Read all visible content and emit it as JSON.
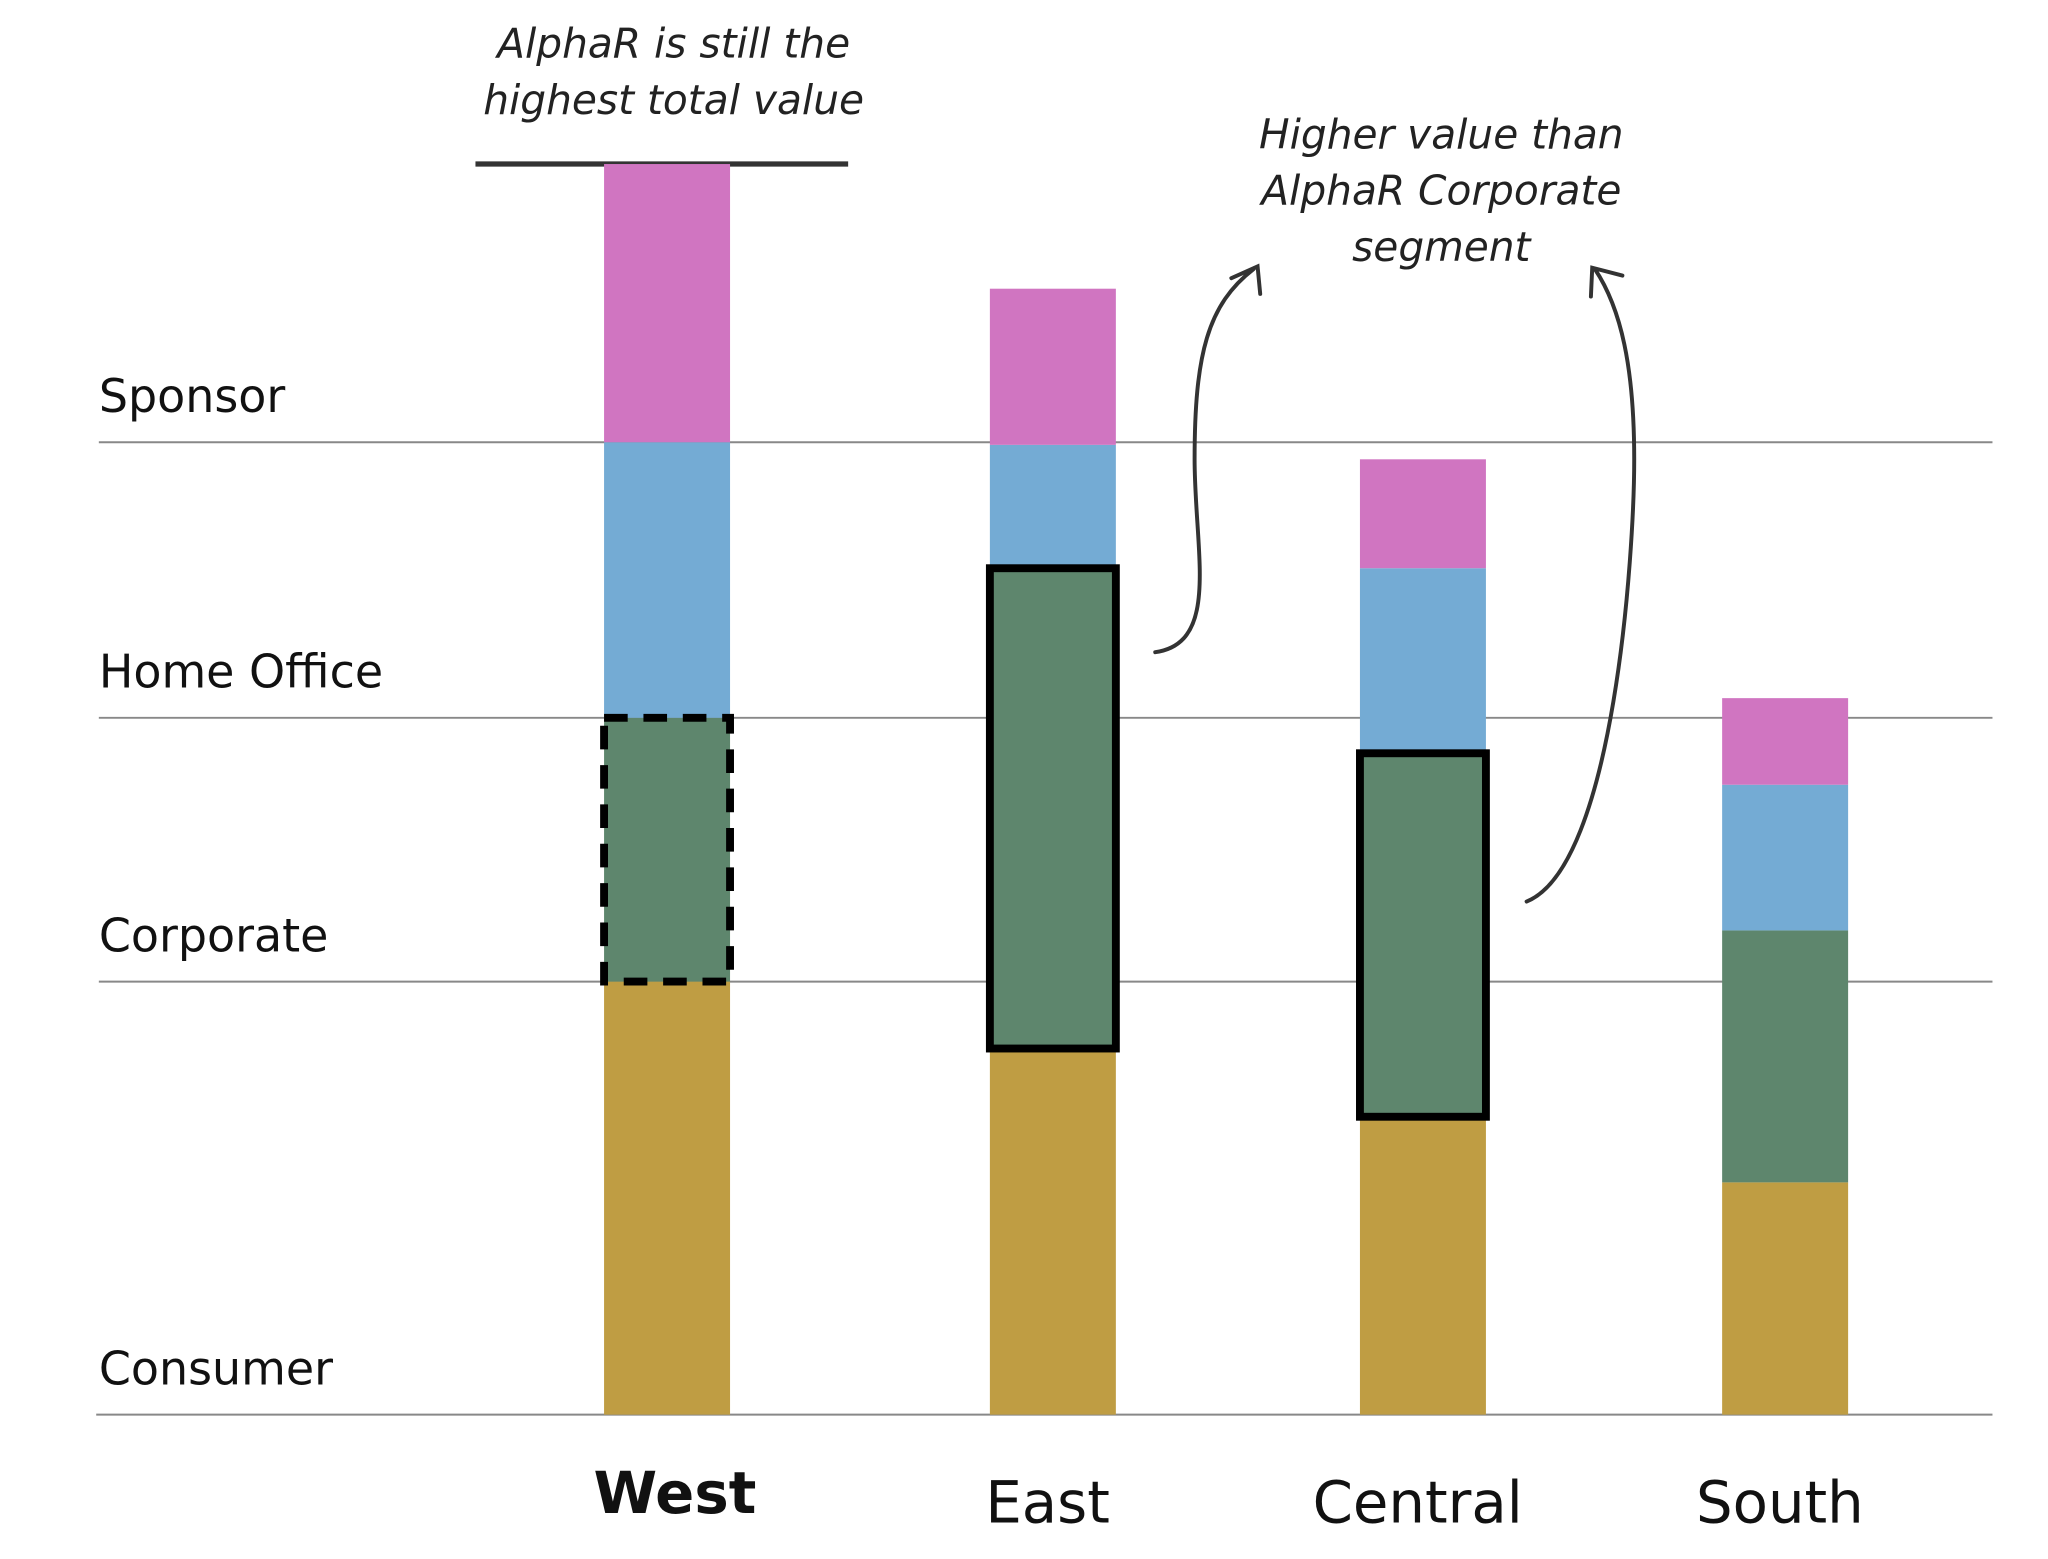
{
  "chart_data": {
    "type": "stacked-bar",
    "categories": [
      "West",
      "East",
      "Central",
      "South"
    ],
    "emphasis": "West",
    "series": [
      {
        "name": "Consumer",
        "color": "#bf9d43",
        "values": [
          330,
          279,
          227,
          177
        ]
      },
      {
        "name": "Corporate",
        "color": "#5e866d",
        "values": [
          201,
          366,
          277,
          192
        ]
      },
      {
        "name": "Home Office",
        "color": "#74abd4",
        "values": [
          210,
          94,
          141,
          111
        ]
      },
      {
        "name": "Sponsor",
        "color": "#d075c1",
        "values": [
          212,
          119,
          83,
          66
        ]
      }
    ],
    "ylim": [
      0,
      1000
    ],
    "highlights": [
      {
        "category": 0,
        "series": 1,
        "style": "dashed"
      },
      {
        "category": 1,
        "series": 1,
        "style": "solid"
      },
      {
        "category": 2,
        "series": 1,
        "style": "solid"
      }
    ],
    "annotations": [
      {
        "lines": [
          "AlphaR is still the",
          "highest total value"
        ]
      },
      {
        "lines": [
          "Higher value than",
          "AlphaR Corporate",
          "segment"
        ]
      }
    ]
  }
}
